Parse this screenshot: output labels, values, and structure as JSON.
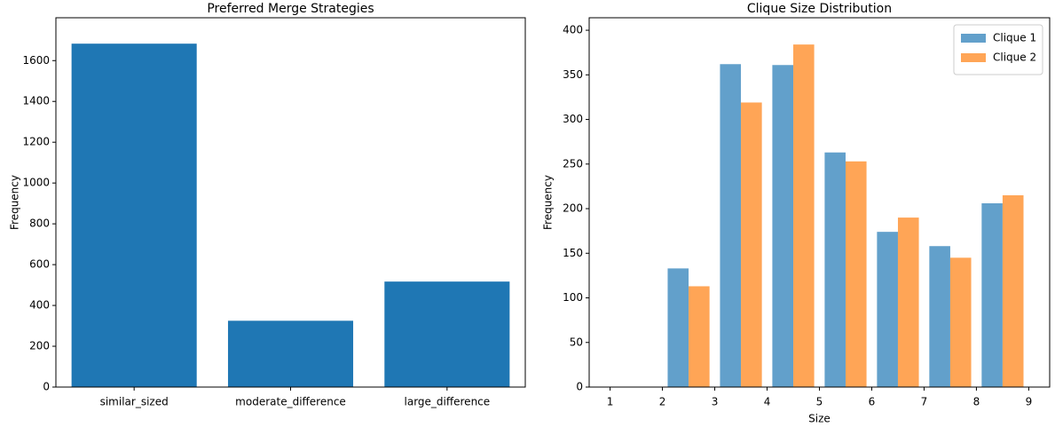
{
  "chart_data": [
    {
      "type": "bar",
      "title": "Preferred Merge Strategies",
      "ylabel": "Frequency",
      "categories": [
        "similar_sized",
        "moderate_difference",
        "large_difference"
      ],
      "values": [
        1683,
        325,
        517
      ],
      "color": "#1f77b4",
      "ylim": [
        0,
        1810
      ],
      "yticks": [
        0,
        200,
        400,
        600,
        800,
        1000,
        1200,
        1400,
        1600
      ]
    },
    {
      "type": "histogram",
      "title": "Clique Size Distribution",
      "xlabel": "Size",
      "ylabel": "Frequency",
      "bins": [
        1,
        2,
        3,
        4,
        5,
        6,
        7,
        8,
        9
      ],
      "series": [
        {
          "name": "Clique 1",
          "color": "#62a0cb",
          "values": [
            0,
            133,
            362,
            361,
            263,
            174,
            158,
            206
          ]
        },
        {
          "name": "Clique 2",
          "color": "#ffa556",
          "values": [
            0,
            113,
            319,
            384,
            253,
            190,
            145,
            215
          ]
        }
      ],
      "xlim": [
        0.6,
        9.4
      ],
      "xticks": [
        1,
        2,
        3,
        4,
        5,
        6,
        7,
        8,
        9
      ],
      "ylim": [
        0,
        414
      ],
      "yticks": [
        0,
        50,
        100,
        150,
        200,
        250,
        300,
        350,
        400
      ],
      "legend": "upper right"
    }
  ]
}
